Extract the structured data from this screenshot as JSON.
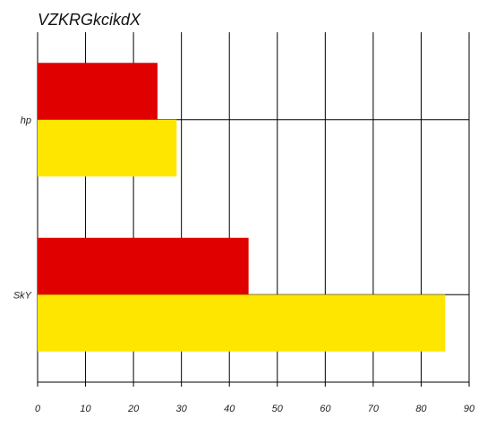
{
  "chart_data": {
    "type": "bar",
    "orientation": "horizontal",
    "title": "VZKRGkcikdX",
    "xlabel": "",
    "ylabel": "",
    "categories": [
      "hp",
      "SkY"
    ],
    "series": [
      {
        "color": "#e00000",
        "values": [
          25,
          44
        ]
      },
      {
        "color": "#ffe600",
        "values": [
          29,
          85
        ]
      }
    ],
    "xlim": [
      0,
      90
    ],
    "xticks": [
      0,
      10,
      20,
      30,
      40,
      50,
      60,
      70,
      80,
      90
    ],
    "grid": true,
    "legend": "none"
  }
}
